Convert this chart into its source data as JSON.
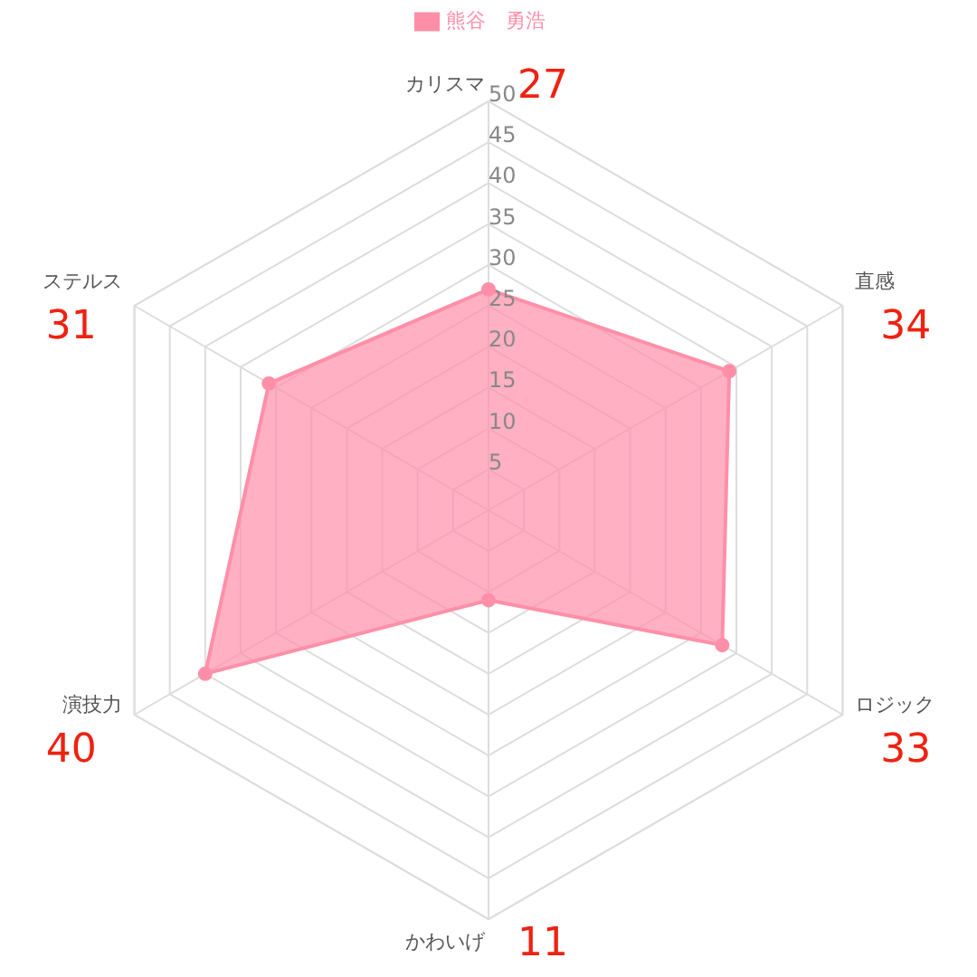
{
  "chart_data": {
    "type": "radar",
    "categories": [
      "カリスマ",
      "直感",
      "ロジック",
      "かわいげ",
      "演技力",
      "ステルス"
    ],
    "series": [
      {
        "name": "熊谷　勇浩",
        "color": "#ff8fa8",
        "values": [
          27,
          34,
          33,
          11,
          40,
          31
        ]
      }
    ],
    "ylim": [
      0,
      50
    ],
    "yticks": [
      5,
      10,
      15,
      20,
      25,
      30,
      35,
      40,
      45,
      50
    ],
    "grid": true,
    "legend": "top",
    "marker": "circle",
    "annotations": [
      "27",
      "34",
      "33",
      "11",
      "40",
      "31"
    ]
  }
}
